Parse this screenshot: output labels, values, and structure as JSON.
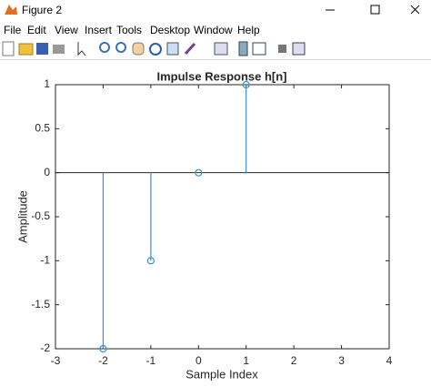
{
  "window": {
    "title": "Figure 2"
  },
  "menu": [
    "File",
    "Edit",
    "View",
    "Insert",
    "Tools",
    "Desktop",
    "Window",
    "Help"
  ],
  "chart_data": {
    "type": "stem",
    "title": "Impulse Response h[n]",
    "x_label": "Sample Index",
    "y_label": "Amplitude",
    "x": [
      -2,
      -1,
      0,
      1
    ],
    "values": [
      -2,
      -1,
      0,
      1
    ],
    "color": "#3b8fd4",
    "xlim": [
      -3,
      4
    ],
    "xticks": [
      -3,
      -2,
      -1,
      0,
      1,
      2,
      3,
      4
    ],
    "ylim": [
      -2,
      1
    ],
    "yticks": [
      -2,
      -1.5,
      -1,
      -0.5,
      0,
      0.5,
      1
    ]
  }
}
